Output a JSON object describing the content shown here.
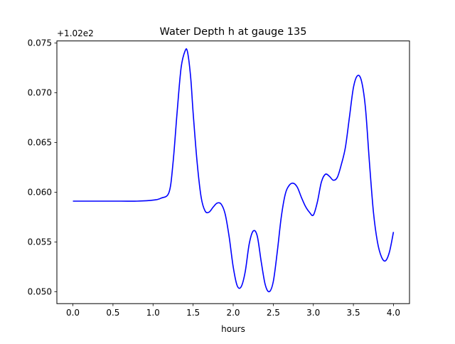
{
  "chart_data": {
    "type": "line",
    "title": "Water Depth h at gauge 135",
    "xlabel": "hours",
    "ylabel": "",
    "y_offset_label": "+1.02e2",
    "xlim": [
      -0.2,
      4.2
    ],
    "ylim": [
      0.0488,
      0.0752
    ],
    "x_ticks": [
      0.0,
      0.5,
      1.0,
      1.5,
      2.0,
      2.5,
      3.0,
      3.5,
      4.0
    ],
    "x_tick_labels": [
      "0.0",
      "0.5",
      "1.0",
      "1.5",
      "2.0",
      "2.5",
      "3.0",
      "3.5",
      "4.0"
    ],
    "y_ticks": [
      0.05,
      0.055,
      0.06,
      0.065,
      0.07,
      0.075
    ],
    "y_tick_labels": [
      "0.050",
      "0.055",
      "0.060",
      "0.065",
      "0.070",
      "0.075"
    ],
    "grid": false,
    "series": [
      {
        "color": "#0000ff",
        "x": [
          0.0,
          0.3,
          0.6,
          0.8,
          1.0,
          1.1,
          1.2,
          1.25,
          1.3,
          1.35,
          1.4,
          1.43,
          1.47,
          1.5,
          1.55,
          1.6,
          1.65,
          1.7,
          1.75,
          1.8,
          1.85,
          1.9,
          1.95,
          2.0,
          2.05,
          2.1,
          2.15,
          2.2,
          2.25,
          2.3,
          2.35,
          2.4,
          2.45,
          2.5,
          2.55,
          2.6,
          2.65,
          2.7,
          2.75,
          2.8,
          2.85,
          2.9,
          2.95,
          3.0,
          3.05,
          3.1,
          3.15,
          3.2,
          3.25,
          3.3,
          3.35,
          3.4,
          3.45,
          3.5,
          3.55,
          3.6,
          3.65,
          3.7,
          3.75,
          3.8,
          3.85,
          3.9,
          3.95,
          4.0
        ],
        "y": [
          0.0591,
          0.0591,
          0.0591,
          0.0591,
          0.0592,
          0.0594,
          0.06,
          0.063,
          0.068,
          0.0725,
          0.0742,
          0.0741,
          0.0715,
          0.068,
          0.063,
          0.0595,
          0.0581,
          0.058,
          0.0585,
          0.0589,
          0.0588,
          0.0578,
          0.0555,
          0.0525,
          0.0506,
          0.0505,
          0.052,
          0.0548,
          0.0561,
          0.0556,
          0.053,
          0.0507,
          0.05,
          0.051,
          0.054,
          0.0575,
          0.0598,
          0.0607,
          0.0609,
          0.0605,
          0.0595,
          0.0586,
          0.058,
          0.0577,
          0.059,
          0.061,
          0.0618,
          0.0616,
          0.0612,
          0.0615,
          0.0628,
          0.0645,
          0.0675,
          0.0705,
          0.0717,
          0.0712,
          0.0685,
          0.063,
          0.058,
          0.055,
          0.0535,
          0.0531,
          0.054,
          0.056
        ]
      }
    ]
  }
}
